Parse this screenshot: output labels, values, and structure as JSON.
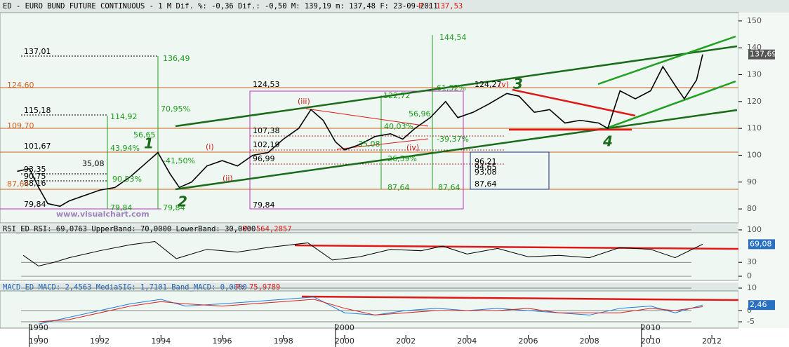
{
  "chart_data": [
    {
      "type": "line",
      "title": "ED - EURO BUND FUTURE CONTINUOUS -  1 M Dif. %: -0,36 Dif.: -0,50 M: 139,19 m: 137,48 F: 23-09-2011",
      "subtitle": "P : 137,53",
      "watermark": "www.visualchart.com",
      "last_label": "137,69",
      "xlim": [
        1988.74,
        2012.87
      ],
      "ylim": [
        74.8,
        153.1
      ],
      "yticks": [
        80,
        90,
        100,
        110,
        120,
        130,
        140,
        150
      ],
      "x": [
        1989.3,
        1989.7,
        1990.0,
        1990.3,
        1990.7,
        1991.0,
        1991.5,
        1992.0,
        1992.5,
        1993.0,
        1993.5,
        1993.9,
        1994.3,
        1994.6,
        1995.0,
        1995.5,
        1996.0,
        1996.5,
        1997.0,
        1997.5,
        1998.0,
        1998.5,
        1998.9,
        1999.3,
        1999.7,
        2000.0,
        2000.5,
        2001.0,
        2001.5,
        2001.9,
        2002.3,
        2002.8,
        2003.3,
        2003.7,
        2004.2,
        2004.7,
        2005.3,
        2005.7,
        2006.2,
        2006.7,
        2007.2,
        2007.7,
        2008.3,
        2008.6,
        2009.0,
        2009.5,
        2010.0,
        2010.4,
        2010.8,
        2011.1,
        2011.5,
        2011.7
      ],
      "series": [
        {
          "name": "ED",
          "color": "#000000",
          "values": [
            94,
            95,
            88,
            82,
            81,
            83,
            85,
            87,
            88,
            92,
            97,
            101,
            93,
            88,
            90,
            96,
            98,
            96,
            100,
            101,
            106,
            110,
            117,
            113,
            105,
            102,
            104,
            107,
            108,
            106,
            110,
            114,
            120,
            114,
            116,
            119,
            123,
            122,
            116,
            117,
            112,
            113,
            112,
            110,
            124,
            121,
            124,
            133,
            126,
            121,
            128,
            137.53
          ]
        }
      ],
      "annotations": [
        "137,01",
        "136,49",
        "124,53",
        "115,18",
        "114,92",
        "70,95%",
        "56,65",
        "43,94%",
        "101,67",
        "107,38",
        "102,19",
        "96,99",
        "35,08",
        "-41,50%",
        "93,35",
        "90,75",
        "90,53%",
        "88,16",
        "79,84",
        "79,84",
        "79,84",
        "79,84",
        "144,54",
        "122,72",
        "61,52%",
        "124,27",
        "56,96",
        "40,03%",
        "35,08",
        "-39,37%",
        "26,59%",
        "87,64",
        "87,64",
        "87,64",
        "96,21",
        "94,65",
        "93,08",
        "(i)",
        "(ii)",
        "(iii)",
        "(iv)",
        "(v)",
        "124,60",
        "109,70",
        "87,64",
        "1",
        "2",
        "3",
        "4"
      ]
    },
    {
      "type": "line",
      "title": "RSI_ED RSI: 69,0763 UpperBand: 70,0000 LowerBand: 30,0000",
      "subtitle": "P: 564,2857",
      "last_label": "69,08",
      "xlim": [
        1988.74,
        2012.87
      ],
      "ylim": [
        -9,
        112
      ],
      "yticks": [
        0,
        30,
        100
      ],
      "x": [
        1989.5,
        1990.0,
        1990.5,
        1991.0,
        1992.0,
        1993.0,
        1993.8,
        1994.5,
        1995.5,
        1996.5,
        1997.5,
        1998.8,
        1999.6,
        2000.5,
        2001.5,
        2002.5,
        2003.2,
        2004.0,
        2005.0,
        2006.0,
        2007.0,
        2008.0,
        2009.0,
        2010.0,
        2010.8,
        2011.7
      ],
      "series": [
        {
          "name": "RSI",
          "color": "#000000",
          "values": [
            45,
            22,
            30,
            40,
            55,
            68,
            75,
            38,
            58,
            52,
            62,
            72,
            35,
            42,
            58,
            55,
            65,
            48,
            60,
            42,
            45,
            40,
            62,
            58,
            40,
            69.08
          ]
        }
      ]
    },
    {
      "type": "line",
      "title": "MACD_ED MACD: 2,4563 MediaSIG: 1,7101 Band_MACD: 0,0000",
      "subtitle": "P: 75,9789",
      "last_label": "2,46",
      "xlim": [
        1988.74,
        2012.87
      ],
      "ylim": [
        -7.8,
        12.5
      ],
      "yticks": [
        10,
        0,
        -5
      ],
      "xticks": [
        1990,
        1992,
        1994,
        1996,
        1998,
        2000,
        2002,
        2004,
        2006,
        2008,
        2010,
        2012
      ],
      "decade_ticks": [
        1990,
        2000,
        2010
      ],
      "x": [
        1990.0,
        1991.0,
        1992.0,
        1993.0,
        1994.0,
        1994.8,
        1996.0,
        1997.0,
        1998.0,
        1999.0,
        2000.0,
        2001.0,
        2002.0,
        2003.0,
        2004.0,
        2005.0,
        2006.0,
        2007.0,
        2008.0,
        2009.0,
        2010.0,
        2010.8,
        2011.7
      ],
      "series": [
        {
          "name": "MACD",
          "color": "#1e7fd8",
          "values": [
            -6,
            -3,
            0,
            3,
            5,
            2,
            3,
            4,
            5,
            6,
            -1,
            -2,
            0,
            1,
            0,
            1,
            0,
            -1,
            -2,
            1,
            2,
            -1,
            2.46
          ]
        },
        {
          "name": "MediaSIG",
          "color": "#d82020",
          "values": [
            -5,
            -4,
            -1,
            2,
            4,
            3,
            2,
            3,
            4,
            5,
            1,
            -2,
            -1,
            0,
            0,
            0,
            1,
            -1,
            -1,
            -1,
            1,
            0,
            1.71
          ]
        }
      ]
    }
  ]
}
